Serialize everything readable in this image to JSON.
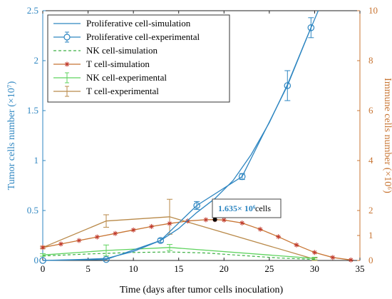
{
  "chart_data": {
    "type": "line",
    "xlabel": "Time (days after tumor cells inoculation)",
    "ylabel_left": "Tumor cells number (×10⁷)",
    "ylabel_right": "Immune cells number (×10⁶)",
    "xlim": [
      0,
      35
    ],
    "ylim_left": [
      0,
      2.5
    ],
    "ylim_right": [
      0,
      10
    ],
    "xticks": [
      "0",
      "5",
      "10",
      "15",
      "20",
      "25",
      "30",
      "35"
    ],
    "yticks_left": [
      "0",
      "0.5",
      "1",
      "1.5",
      "2",
      "2.5"
    ],
    "yticks_right": [
      "0",
      "1",
      "2",
      "4",
      "6",
      "8",
      "10"
    ],
    "legend_position": "top-left",
    "colors": {
      "tumor": "#2e86c1",
      "immune_axis": "#c87533",
      "t_cell": "#c87533",
      "nk_sim": "#3cb043",
      "nk_exp": "#5fd35f",
      "t_exp": "#b98a4a",
      "t_marker": "#c0392b"
    },
    "series": [
      {
        "name": "Proliferative cell-simulation",
        "axis": "left",
        "x": [
          0,
          4,
          7,
          10,
          13,
          15,
          17,
          19,
          21,
          23,
          25,
          27,
          29,
          30.4
        ],
        "y": [
          0.0,
          0.01,
          0.02,
          0.09,
          0.2,
          0.32,
          0.48,
          0.62,
          0.8,
          1.06,
          1.38,
          1.76,
          2.2,
          2.5
        ]
      },
      {
        "name": "Proliferative cell-experimental",
        "axis": "left",
        "x": [
          0,
          7,
          13,
          17,
          22,
          27,
          29.6
        ],
        "y": [
          0.0,
          0.01,
          0.2,
          0.55,
          0.84,
          1.75,
          2.33
        ],
        "err": [
          0.0,
          0.0,
          0.02,
          0.04,
          0.03,
          0.15,
          0.1
        ]
      },
      {
        "name": "NK cell-simulation",
        "axis": "right",
        "x": [
          0,
          5,
          10,
          14,
          18,
          22,
          26,
          30
        ],
        "y": [
          0.18,
          0.26,
          0.32,
          0.34,
          0.3,
          0.2,
          0.1,
          0.04
        ]
      },
      {
        "name": "T cell-simulation",
        "axis": "right",
        "x": [
          0,
          2,
          4,
          6,
          8,
          10,
          12,
          14,
          16,
          18,
          19,
          20,
          22,
          24,
          26,
          28,
          30,
          32,
          34
        ],
        "y": [
          0.52,
          0.66,
          0.8,
          0.94,
          1.08,
          1.22,
          1.36,
          1.48,
          1.58,
          1.63,
          1.635,
          1.62,
          1.5,
          1.25,
          0.95,
          0.62,
          0.32,
          0.12,
          0.02
        ],
        "marker": "asterisk"
      },
      {
        "name": "NK cell-experimental",
        "axis": "right",
        "x": [
          0,
          7,
          14,
          30
        ],
        "y": [
          0.22,
          0.4,
          0.52,
          0.08
        ],
        "err": [
          0.05,
          0.22,
          0.12,
          0.05
        ]
      },
      {
        "name": "T cell-experimental",
        "axis": "right",
        "x": [
          0,
          7,
          14,
          30
        ],
        "y": [
          0.52,
          1.58,
          1.75,
          0.05
        ],
        "err": [
          0.05,
          0.25,
          0.7,
          0.05
        ]
      }
    ],
    "annotation": {
      "value": "1.635× 10⁶",
      "unit": "cells",
      "x": 19,
      "y": 1.635,
      "axis": "right"
    }
  }
}
